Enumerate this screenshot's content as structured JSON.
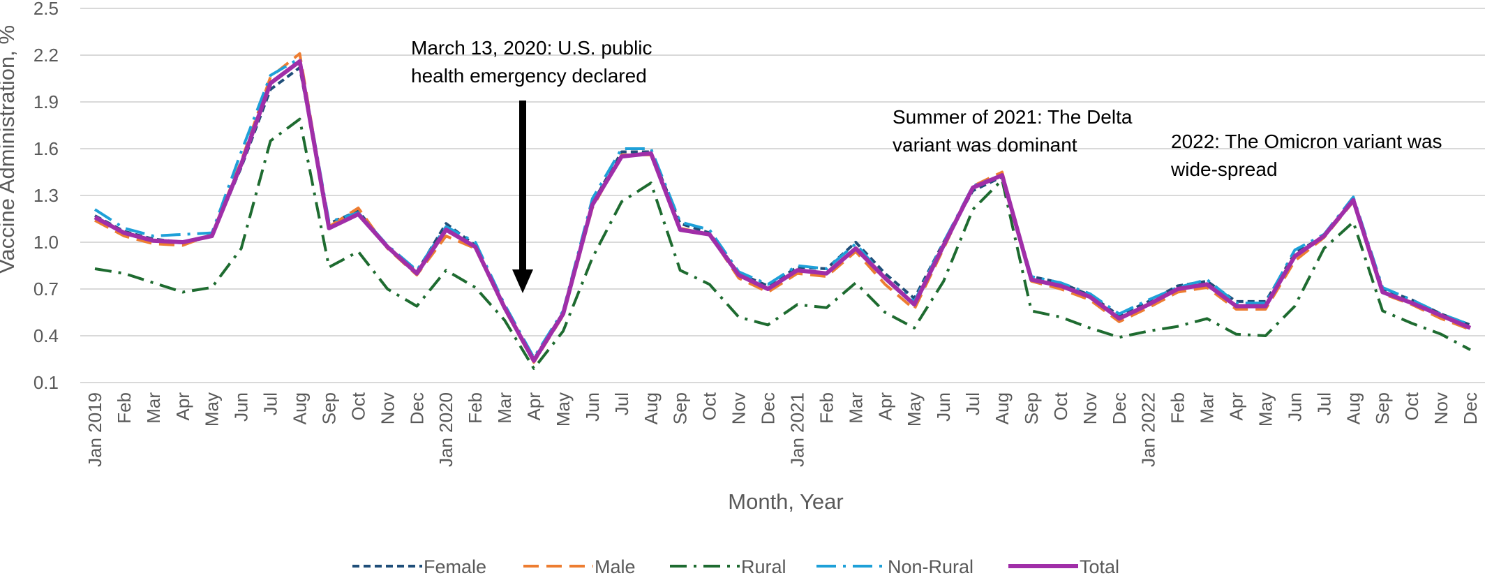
{
  "chart_data": {
    "type": "line",
    "xlabel": "Month, Year",
    "ylabel": "Vaccine Administration, %",
    "ylim": [
      0.1,
      2.5
    ],
    "yticks": [
      0.1,
      0.4,
      0.7,
      1.0,
      1.3,
      1.6,
      1.9,
      2.2,
      2.5
    ],
    "ytick_labels": [
      "0.1",
      "0.4",
      "0.7",
      "1.0",
      "1.3",
      "1.6",
      "1.9",
      "2.2",
      "2.5"
    ],
    "grid": "horizontal",
    "legend": "bottom",
    "categories": [
      "Jan 2019",
      "Feb",
      "Mar",
      "Apr",
      "May",
      "Jun",
      "Jul",
      "Aug",
      "Sep",
      "Oct",
      "Nov",
      "Dec",
      "Jan 2020",
      "Feb",
      "Mar",
      "Apr",
      "May",
      "Jun",
      "Jul",
      "Aug",
      "Sep",
      "Oct",
      "Nov",
      "Dec",
      "Jan 2021",
      "Feb",
      "Mar",
      "Apr",
      "May",
      "Jun",
      "Jul",
      "Aug",
      "Sep",
      "Oct",
      "Nov",
      "Dec",
      "Jan 2022",
      "Feb",
      "Mar",
      "Apr",
      "May",
      "Jun",
      "Jul",
      "Aug",
      "Sep",
      "Oct",
      "Nov",
      "Dec"
    ],
    "series": [
      {
        "name": "Female",
        "color": "#1f4e79",
        "dash": "short-dash",
        "width": 4,
        "values": [
          1.17,
          1.07,
          1.02,
          1.0,
          1.04,
          1.48,
          1.98,
          2.12,
          1.12,
          1.2,
          0.97,
          0.81,
          1.12,
          0.98,
          0.58,
          0.25,
          0.55,
          1.25,
          1.58,
          1.58,
          1.12,
          1.06,
          0.8,
          0.72,
          0.84,
          0.83,
          1.0,
          0.8,
          0.64,
          1.0,
          1.33,
          1.42,
          0.78,
          0.74,
          0.66,
          0.53,
          0.62,
          0.72,
          0.75,
          0.62,
          0.62,
          0.93,
          1.04,
          1.27,
          0.7,
          0.63,
          0.54,
          0.47
        ]
      },
      {
        "name": "Male",
        "color": "#ed7d31",
        "dash": "long-dash",
        "width": 4,
        "values": [
          1.14,
          1.04,
          0.99,
          0.98,
          1.05,
          1.52,
          2.06,
          2.21,
          1.1,
          1.22,
          0.96,
          0.79,
          1.04,
          0.96,
          0.57,
          0.23,
          0.53,
          1.22,
          1.56,
          1.56,
          1.09,
          1.05,
          0.77,
          0.68,
          0.8,
          0.78,
          0.94,
          0.73,
          0.57,
          0.96,
          1.36,
          1.45,
          0.75,
          0.7,
          0.63,
          0.49,
          0.58,
          0.68,
          0.71,
          0.57,
          0.57,
          0.88,
          1.03,
          1.26,
          0.67,
          0.6,
          0.51,
          0.44
        ]
      },
      {
        "name": "Rural",
        "color": "#1e6b30",
        "dash": "dash-dot",
        "width": 4,
        "values": [
          0.83,
          0.8,
          0.74,
          0.68,
          0.71,
          0.96,
          1.65,
          1.79,
          0.84,
          0.94,
          0.7,
          0.59,
          0.82,
          0.71,
          0.5,
          0.19,
          0.43,
          0.9,
          1.26,
          1.38,
          0.82,
          0.73,
          0.52,
          0.47,
          0.6,
          0.58,
          0.74,
          0.55,
          0.45,
          0.75,
          1.21,
          1.4,
          0.56,
          0.52,
          0.45,
          0.39,
          0.43,
          0.46,
          0.51,
          0.41,
          0.4,
          0.59,
          0.96,
          1.13,
          0.56,
          0.48,
          0.41,
          0.31
        ]
      },
      {
        "name": "Non-Rural",
        "color": "#1ea0d8",
        "dash": "long-dash-dot",
        "width": 4,
        "values": [
          1.21,
          1.09,
          1.04,
          1.05,
          1.06,
          1.58,
          2.07,
          2.18,
          1.13,
          1.19,
          0.98,
          0.82,
          1.1,
          1.0,
          0.6,
          0.26,
          0.56,
          1.28,
          1.6,
          1.6,
          1.13,
          1.08,
          0.81,
          0.73,
          0.85,
          0.83,
          0.99,
          0.77,
          0.62,
          1.0,
          1.36,
          1.43,
          0.78,
          0.74,
          0.67,
          0.54,
          0.63,
          0.71,
          0.76,
          0.61,
          0.61,
          0.95,
          1.05,
          1.29,
          0.71,
          0.63,
          0.54,
          0.47
        ]
      },
      {
        "name": "Total",
        "color": "#a02ea8",
        "dash": "solid",
        "width": 6,
        "values": [
          1.16,
          1.06,
          1.01,
          1.0,
          1.04,
          1.5,
          2.02,
          2.16,
          1.09,
          1.18,
          0.97,
          0.8,
          1.08,
          0.97,
          0.58,
          0.24,
          0.54,
          1.24,
          1.55,
          1.57,
          1.08,
          1.05,
          0.79,
          0.7,
          0.82,
          0.8,
          0.96,
          0.77,
          0.6,
          0.98,
          1.35,
          1.43,
          0.76,
          0.72,
          0.65,
          0.51,
          0.6,
          0.7,
          0.73,
          0.59,
          0.59,
          0.91,
          1.04,
          1.27,
          0.68,
          0.61,
          0.53,
          0.45
        ]
      }
    ],
    "annotations": [
      {
        "lines": [
          "March 13, 2020: U.S. public",
          "health emergency declared"
        ],
        "category_index": 14,
        "arrow": true
      },
      {
        "lines": [
          "Summer of 2021: The Delta",
          "variant was dominant"
        ],
        "category_index": 28,
        "arrow": false
      },
      {
        "lines": [
          "2022: The Omicron variant was",
          "wide-spread"
        ],
        "category_index": 37,
        "arrow": false
      }
    ]
  }
}
